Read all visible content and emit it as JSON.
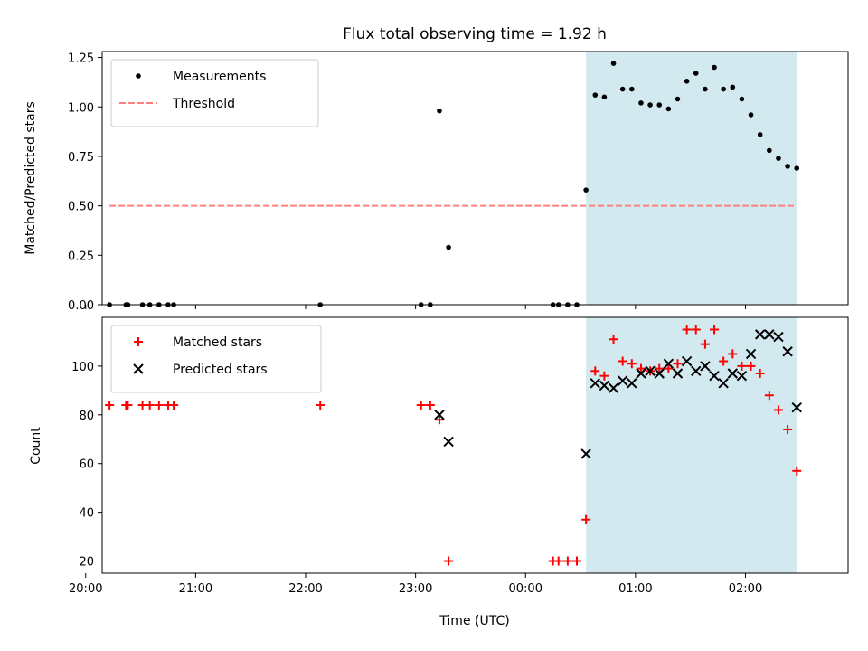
{
  "title": "Flux total observing time = 1.92 h",
  "chart_data": [
    {
      "type": "scatter",
      "ylabel": "Matched/Predicted stars",
      "xlim": [
        "20:09",
        "02:56"
      ],
      "ylim": [
        0,
        1.28
      ],
      "x_ticks": [
        "20:00",
        "21:00",
        "22:00",
        "23:00",
        "00:00",
        "01:00",
        "02:00"
      ],
      "y_ticks": [
        "0.00",
        "0.25",
        "0.50",
        "0.75",
        "1.00",
        "1.25"
      ],
      "shaded_interval": {
        "start": "00:33",
        "end": "02:28",
        "color": "#d2e9f0"
      },
      "threshold": {
        "name": "Threshold",
        "value": 0.5,
        "from": "20:13",
        "to": "02:28",
        "color": "#ff7f7f"
      },
      "legend_position": "upper left",
      "series": [
        {
          "name": "Measurements",
          "marker": "dot",
          "color": "#000000",
          "x": [
            "20:13",
            "20:22",
            "20:23",
            "20:31",
            "20:35",
            "20:40",
            "20:45",
            "20:48",
            "22:08",
            "23:03",
            "23:08",
            "23:13",
            "23:18",
            "00:15",
            "00:18",
            "00:23",
            "00:28",
            "00:33",
            "00:38",
            "00:43",
            "00:48",
            "00:53",
            "00:58",
            "01:03",
            "01:08",
            "01:13",
            "01:18",
            "01:23",
            "01:28",
            "01:33",
            "01:38",
            "01:43",
            "01:48",
            "01:53",
            "01:58",
            "02:03",
            "02:08",
            "02:13",
            "02:18",
            "02:23",
            "02:28"
          ],
          "y": [
            0,
            0,
            0,
            0,
            0,
            0,
            0,
            0,
            0,
            0,
            0,
            0.98,
            0.29,
            0,
            0,
            0,
            0,
            0.58,
            1.06,
            1.05,
            1.22,
            1.09,
            1.09,
            1.02,
            1.01,
            1.01,
            0.99,
            1.04,
            1.13,
            1.17,
            1.09,
            1.2,
            1.09,
            1.1,
            1.04,
            0.96,
            0.86,
            0.78,
            0.74,
            0.7,
            0.69
          ]
        }
      ]
    },
    {
      "type": "scatter",
      "xlabel": "Time (UTC)",
      "ylabel": "Count",
      "xlim": [
        "20:09",
        "02:56"
      ],
      "ylim": [
        15,
        120
      ],
      "x_ticks": [
        "20:00",
        "21:00",
        "22:00",
        "23:00",
        "00:00",
        "01:00",
        "02:00"
      ],
      "y_ticks": [
        "20",
        "40",
        "60",
        "80",
        "100"
      ],
      "shaded_interval": {
        "start": "00:33",
        "end": "02:28",
        "color": "#d2e9f0"
      },
      "legend_position": "upper left",
      "series": [
        {
          "name": "Matched stars",
          "marker": "plus",
          "color": "#ff0000",
          "x": [
            "20:13",
            "20:22",
            "20:23",
            "20:31",
            "20:35",
            "20:40",
            "20:45",
            "20:48",
            "22:08",
            "23:03",
            "23:08",
            "23:13",
            "23:18",
            "00:15",
            "00:18",
            "00:23",
            "00:28",
            "00:33",
            "00:38",
            "00:43",
            "00:48",
            "00:53",
            "00:58",
            "01:03",
            "01:08",
            "01:13",
            "01:18",
            "01:23",
            "01:28",
            "01:33",
            "01:38",
            "01:43",
            "01:48",
            "01:53",
            "01:58",
            "02:03",
            "02:08",
            "02:13",
            "02:18",
            "02:23",
            "02:28"
          ],
          "y": [
            84,
            84,
            84,
            84,
            84,
            84,
            84,
            84,
            84,
            84,
            84,
            78,
            20,
            20,
            20,
            20,
            20,
            37,
            98,
            96,
            111,
            102,
            101,
            99,
            98,
            99,
            99,
            101,
            115,
            115,
            109,
            115,
            102,
            105,
            100,
            100,
            97,
            88,
            82,
            74,
            57
          ]
        },
        {
          "name": "Predicted stars",
          "marker": "x",
          "color": "#000000",
          "x": [
            "23:13",
            "23:18",
            "00:33",
            "00:38",
            "00:43",
            "00:48",
            "00:53",
            "00:58",
            "01:03",
            "01:08",
            "01:13",
            "01:18",
            "01:23",
            "01:28",
            "01:33",
            "01:38",
            "01:43",
            "01:48",
            "01:53",
            "01:58",
            "02:03",
            "02:08",
            "02:13",
            "02:18",
            "02:23",
            "02:28"
          ],
          "y": [
            80,
            69,
            64,
            93,
            92,
            91,
            94,
            93,
            97,
            98,
            97,
            101,
            97,
            102,
            98,
            100,
            96,
            93,
            97,
            96,
            105,
            113,
            113,
            112,
            106,
            83
          ]
        }
      ]
    }
  ]
}
